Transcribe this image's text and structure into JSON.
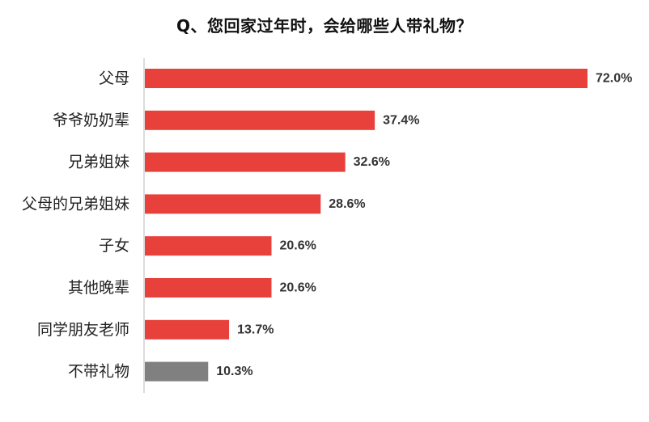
{
  "chart_data": {
    "type": "bar",
    "orientation": "horizontal",
    "title": "Q、您回家过年时，会给哪些人带礼物？",
    "categories": [
      "父母",
      "爷爷奶奶辈",
      "兄弟姐妹",
      "父母的兄弟姐妹",
      "子女",
      "其他晚辈",
      "同学朋友老师",
      "不带礼物"
    ],
    "values": [
      72.0,
      37.4,
      32.6,
      28.6,
      20.6,
      20.6,
      13.7,
      10.3
    ],
    "value_labels": [
      "72.0%",
      "37.4%",
      "32.6%",
      "28.6%",
      "20.6%",
      "20.6%",
      "13.7%",
      "10.3%"
    ],
    "xlim": [
      0,
      72
    ],
    "grid": false,
    "legend": "none",
    "colors": {
      "bar": "#e8413c",
      "highlight_bar": "#808080",
      "axis": "#d0d0d0"
    },
    "highlight_category": "不带礼物"
  }
}
